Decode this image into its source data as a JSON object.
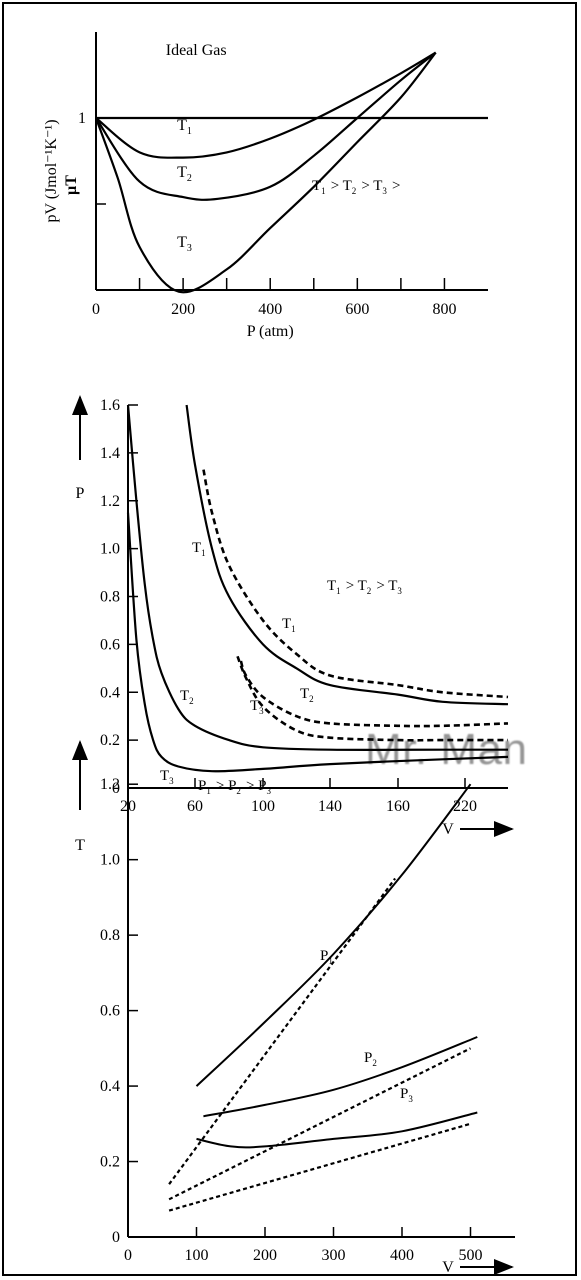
{
  "watermark": "Mr. Man",
  "chart_data": [
    {
      "type": "line",
      "title": "",
      "xlabel": "P (atm)",
      "ylabel_line1": "pV",
      "ylabel_line1_units": "(Jmol⁻¹K⁻¹)",
      "ylabel_line2": "µT",
      "x_ticks": [
        "0",
        "200",
        "400",
        "600",
        "800"
      ],
      "y_ticks": [
        "1"
      ],
      "xlim": [
        0,
        900
      ],
      "ylim": [
        0,
        1.5
      ],
      "annotation": "T₁ > T₂ > T₃ >",
      "series": [
        {
          "name": "Ideal Gas",
          "x": [
            0,
            900
          ],
          "y": [
            1,
            1
          ]
        },
        {
          "name": "T₁",
          "x": [
            0,
            100,
            200,
            300,
            400,
            500,
            600,
            700,
            780
          ],
          "y": [
            1.0,
            0.8,
            0.77,
            0.8,
            0.88,
            0.99,
            1.12,
            1.26,
            1.38
          ]
        },
        {
          "name": "T₂",
          "x": [
            0,
            100,
            200,
            280,
            400,
            500,
            600,
            700,
            780
          ],
          "y": [
            1.0,
            0.63,
            0.54,
            0.53,
            0.6,
            0.78,
            1.0,
            1.22,
            1.38
          ]
        },
        {
          "name": "T₃",
          "x": [
            0,
            50,
            100,
            190,
            300,
            400,
            500,
            600,
            700,
            780
          ],
          "y": [
            1.0,
            0.65,
            0.25,
            -0.01,
            0.12,
            0.36,
            0.6,
            0.86,
            1.12,
            1.38
          ]
        }
      ]
    },
    {
      "type": "line",
      "title": "",
      "xlabel": "V",
      "ylabel": "P",
      "x_ticks": [
        "20",
        "60",
        "100",
        "140",
        "160",
        "220"
      ],
      "y_ticks": [
        "0",
        "0.2",
        "0.4",
        "0.6",
        "0.8",
        "1.0",
        "1.2",
        "1.4",
        "1.6"
      ],
      "ylim": [
        0,
        1.6
      ],
      "annotation": "T₁ > T₂ > T₃",
      "series": [
        {
          "name": "T₁",
          "style": "solid",
          "x": [
            55,
            60,
            70,
            80,
            100,
            120,
            140,
            160,
            200,
            240
          ],
          "y": [
            1.6,
            1.35,
            1.0,
            0.8,
            0.6,
            0.5,
            0.43,
            0.39,
            0.36,
            0.35
          ]
        },
        {
          "name": "T₁",
          "style": "dashed",
          "x": [
            65,
            70,
            80,
            100,
            120,
            140,
            160,
            200,
            240
          ],
          "y": [
            1.33,
            1.15,
            0.93,
            0.7,
            0.56,
            0.47,
            0.43,
            0.4,
            0.38
          ]
        },
        {
          "name": "T₂",
          "style": "solid",
          "x": [
            20,
            25,
            30,
            35,
            40,
            50,
            60,
            80,
            100,
            140,
            200,
            240
          ],
          "y": [
            1.6,
            1.2,
            0.85,
            0.62,
            0.48,
            0.33,
            0.26,
            0.2,
            0.17,
            0.16,
            0.16,
            0.16
          ]
        },
        {
          "name": "T₂",
          "style": "dashed",
          "x": [
            87,
            90,
            100,
            120,
            140,
            160,
            200,
            240
          ],
          "y": [
            0.53,
            0.47,
            0.38,
            0.3,
            0.27,
            0.26,
            0.26,
            0.27
          ]
        },
        {
          "name": "T₃",
          "style": "solid",
          "x": [
            20,
            25,
            30,
            35,
            40,
            50,
            70,
            100,
            140,
            200,
            240
          ],
          "y": [
            1.15,
            0.62,
            0.35,
            0.2,
            0.13,
            0.09,
            0.07,
            0.08,
            0.1,
            0.12,
            0.13
          ]
        },
        {
          "name": "T₃",
          "style": "dashed",
          "x": [
            85,
            90,
            100,
            120,
            140,
            160,
            200,
            240
          ],
          "y": [
            0.55,
            0.46,
            0.34,
            0.24,
            0.21,
            0.2,
            0.2,
            0.2
          ]
        }
      ]
    },
    {
      "type": "line",
      "title": "",
      "xlabel": "V",
      "ylabel": "T",
      "x_ticks": [
        "0",
        "100",
        "200",
        "300",
        "400",
        "500"
      ],
      "y_ticks": [
        "0",
        "0.2",
        "0.4",
        "0.6",
        "0.8",
        "1.0",
        "1.2"
      ],
      "xlim": [
        0,
        550
      ],
      "ylim": [
        0,
        1.3
      ],
      "annotation": "P₁ > P₂ > P₃",
      "series": [
        {
          "name": "P₁",
          "style": "solid",
          "x": [
            100,
            200,
            300,
            400,
            500
          ],
          "y": [
            0.4,
            0.57,
            0.75,
            0.96,
            1.2
          ]
        },
        {
          "name": "P₁",
          "style": "dashed",
          "x": [
            60,
            390
          ],
          "y": [
            0.14,
            0.95
          ]
        },
        {
          "name": "P₂",
          "style": "solid",
          "x": [
            110,
            200,
            300,
            400,
            510
          ],
          "y": [
            0.32,
            0.35,
            0.39,
            0.45,
            0.53
          ]
        },
        {
          "name": "P₂",
          "style": "dashed",
          "x": [
            60,
            500
          ],
          "y": [
            0.1,
            0.5
          ]
        },
        {
          "name": "P₃",
          "style": "solid",
          "x": [
            100,
            150,
            200,
            300,
            400,
            510
          ],
          "y": [
            0.26,
            0.24,
            0.24,
            0.26,
            0.28,
            0.33
          ]
        },
        {
          "name": "P₃",
          "style": "dashed",
          "x": [
            60,
            500
          ],
          "y": [
            0.07,
            0.3
          ]
        }
      ]
    }
  ]
}
